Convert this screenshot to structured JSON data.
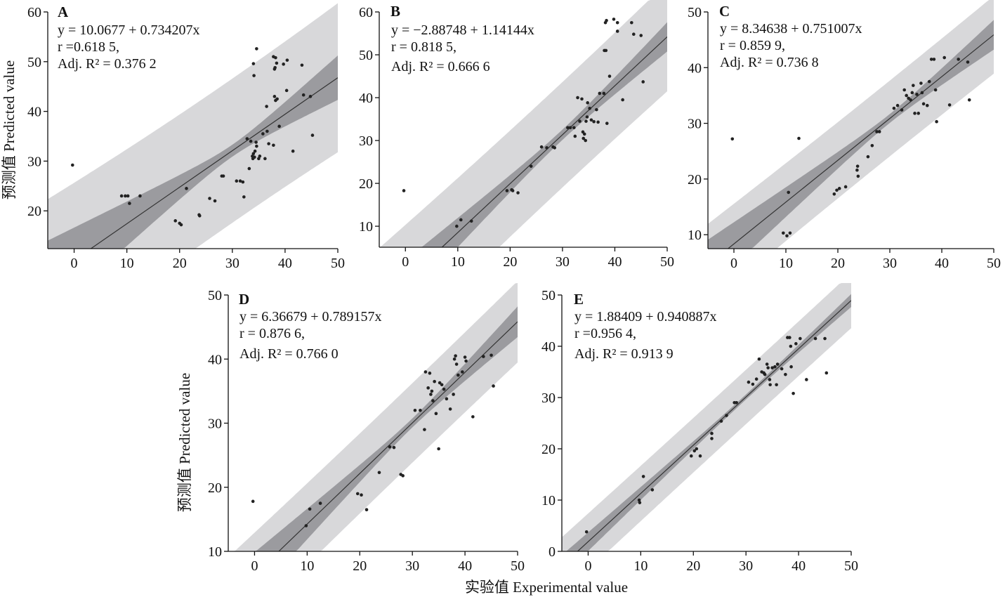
{
  "figure": {
    "ylabel_top": "预测值 Predicted value",
    "ylabel_bottom": "预测值 Predicted value",
    "xlabel": "实验值 Experimental value"
  },
  "colors": {
    "prediction_band": "#d8d8da",
    "confidence_band": "#9b9b9f",
    "fit_line": "#333333",
    "points": "#222222"
  },
  "chart_data": [
    {
      "type": "scatter",
      "panel": "A",
      "equation": "y = 10.0677 + 0.734207x",
      "r_text": "r =0.618 5,",
      "adj_r2_text": "Adj. R² = 0.376 2",
      "intercept": 10.0677,
      "slope": 0.734207,
      "xlim": [
        -5,
        50
      ],
      "ylim": [
        12.4,
        60
      ],
      "xticks": [
        0,
        10,
        20,
        30,
        40,
        50
      ],
      "yticks": [
        20,
        30,
        40,
        50,
        60
      ],
      "bands": {
        "center_x": 30,
        "prediction_min_halfwidth": 14.5,
        "prediction_growth": 0.19,
        "confidence_min_halfwidth": 1.2,
        "confidence_growth": 0.215
      },
      "points": [
        [
          -0.3,
          29.2
        ],
        [
          9,
          23
        ],
        [
          9.7,
          23
        ],
        [
          10.2,
          23
        ],
        [
          10.5,
          21.5
        ],
        [
          12.5,
          23
        ],
        [
          19.2,
          18
        ],
        [
          20,
          17.5
        ],
        [
          20.3,
          17.2
        ],
        [
          21.3,
          24.5
        ],
        [
          23.7,
          19.2
        ],
        [
          23.8,
          19
        ],
        [
          25.7,
          22.5
        ],
        [
          26.7,
          22
        ],
        [
          28,
          27
        ],
        [
          28.3,
          27
        ],
        [
          30.8,
          26
        ],
        [
          31.5,
          26
        ],
        [
          32,
          25.8
        ],
        [
          32.2,
          22.8
        ],
        [
          32.8,
          34.5
        ],
        [
          33.2,
          28.5
        ],
        [
          33.5,
          34
        ],
        [
          33.8,
          31
        ],
        [
          33.9,
          30.5
        ],
        [
          34,
          31.5
        ],
        [
          34.2,
          30.8
        ],
        [
          34.3,
          32
        ],
        [
          34.5,
          33.8
        ],
        [
          34.6,
          33
        ],
        [
          35,
          30.5
        ],
        [
          35.2,
          31
        ],
        [
          34,
          49.6
        ],
        [
          34.1,
          47.2
        ],
        [
          34.6,
          52.6
        ],
        [
          36.2,
          30.5
        ],
        [
          36.5,
          41
        ],
        [
          36.6,
          36
        ],
        [
          36.9,
          33.5
        ],
        [
          35.8,
          35.5
        ],
        [
          37.8,
          33.2
        ],
        [
          37.8,
          51
        ],
        [
          38.2,
          50.8
        ],
        [
          38,
          48.5
        ],
        [
          38.1,
          48.8
        ],
        [
          38.4,
          49.7
        ],
        [
          38,
          43
        ],
        [
          38.2,
          42.2
        ],
        [
          38.5,
          42.5
        ],
        [
          38.9,
          37
        ],
        [
          39.7,
          49.5
        ],
        [
          40.4,
          50.3
        ],
        [
          40.3,
          44.2
        ],
        [
          41.5,
          32
        ],
        [
          43.2,
          49.3
        ],
        [
          43.5,
          43.3
        ],
        [
          44.8,
          43
        ],
        [
          45.2,
          35.2
        ]
      ]
    },
    {
      "type": "scatter",
      "panel": "B",
      "equation": "y = −2.88748 + 1.14144x",
      "r_text": "r = 0.818 5,",
      "adj_r2_text": "Adj. R² = 0.666 6",
      "intercept": -2.88748,
      "slope": 1.14144,
      "xlim": [
        -5,
        50
      ],
      "ylim": [
        5.1,
        60
      ],
      "xticks": [
        0,
        10,
        20,
        30,
        40,
        50
      ],
      "yticks": [
        10,
        20,
        30,
        40,
        50,
        60
      ],
      "bands": {
        "center_x": 30,
        "prediction_min_halfwidth": 12.3,
        "prediction_growth": 0.16,
        "confidence_min_halfwidth": 1.2,
        "confidence_growth": 0.16
      },
      "points": [
        [
          -0.3,
          18.3
        ],
        [
          9.8,
          10
        ],
        [
          10.6,
          11.5
        ],
        [
          12.6,
          11.2
        ],
        [
          19.4,
          18.3
        ],
        [
          20.3,
          18.5
        ],
        [
          20.5,
          18.3
        ],
        [
          21.5,
          17.8
        ],
        [
          24,
          24
        ],
        [
          26,
          28.5
        ],
        [
          27,
          28.3
        ],
        [
          28.2,
          28.5
        ],
        [
          28.5,
          28.3
        ],
        [
          31,
          33
        ],
        [
          31.5,
          33
        ],
        [
          32.2,
          33
        ],
        [
          32.4,
          31
        ],
        [
          32.9,
          40
        ],
        [
          33.3,
          34.5
        ],
        [
          33.7,
          39.7
        ],
        [
          33.9,
          32
        ],
        [
          34,
          30.5
        ],
        [
          34.2,
          31.5
        ],
        [
          34.4,
          30
        ],
        [
          34.5,
          34.5
        ],
        [
          34.7,
          35.5
        ],
        [
          34.8,
          38.8
        ],
        [
          35.2,
          37.5
        ],
        [
          35.5,
          34.8
        ],
        [
          36,
          34.4
        ],
        [
          36.5,
          37.2
        ],
        [
          36.8,
          34.3
        ],
        [
          37.1,
          41
        ],
        [
          37.9,
          41
        ],
        [
          38,
          51
        ],
        [
          38.3,
          51
        ],
        [
          38.5,
          34
        ],
        [
          38.2,
          57.5
        ],
        [
          38.4,
          58
        ],
        [
          39,
          45
        ],
        [
          39.8,
          58.3
        ],
        [
          40.5,
          57.5
        ],
        [
          40.5,
          55.5
        ],
        [
          41.5,
          39.5
        ],
        [
          43.2,
          57.5
        ],
        [
          43.6,
          54.8
        ],
        [
          45,
          54.5
        ],
        [
          45.4,
          43.7
        ]
      ]
    },
    {
      "type": "scatter",
      "panel": "C",
      "equation": "y = 8.34638 + 0.751007x",
      "r_text": "r = 0.859 9,",
      "adj_r2_text": "Adj. R² = 0.736 8",
      "intercept": 8.34638,
      "slope": 0.751007,
      "xlim": [
        -5,
        50
      ],
      "ylim": [
        7.5,
        50
      ],
      "xticks": [
        0,
        10,
        20,
        30,
        40,
        50
      ],
      "yticks": [
        10,
        20,
        30,
        40,
        50
      ],
      "bands": {
        "center_x": 30,
        "prediction_min_halfwidth": 6.8,
        "prediction_growth": 0.08,
        "confidence_min_halfwidth": 0.8,
        "confidence_growth": 0.127
      },
      "points": [
        [
          -0.3,
          27.2
        ],
        [
          9.5,
          10.3
        ],
        [
          10.2,
          9.8
        ],
        [
          10.8,
          10.3
        ],
        [
          10.5,
          17.6
        ],
        [
          12.5,
          27.3
        ],
        [
          19.3,
          17.3
        ],
        [
          19.8,
          18
        ],
        [
          20.3,
          18.3
        ],
        [
          21.5,
          18.6
        ],
        [
          23.7,
          21.6
        ],
        [
          23.8,
          22.3
        ],
        [
          23.9,
          20.5
        ],
        [
          25.8,
          24
        ],
        [
          26.6,
          26
        ],
        [
          27.5,
          28.5
        ],
        [
          28,
          28.5
        ],
        [
          30.8,
          32.7
        ],
        [
          31.5,
          33.2
        ],
        [
          32.3,
          32.4
        ],
        [
          32.8,
          36
        ],
        [
          33.2,
          35
        ],
        [
          33.6,
          34.5
        ],
        [
          34,
          34.2
        ],
        [
          34.3,
          35.5
        ],
        [
          34.5,
          36.8
        ],
        [
          34.8,
          31.8
        ],
        [
          35.2,
          35.2
        ],
        [
          35.5,
          31.8
        ],
        [
          36,
          37.2
        ],
        [
          36.2,
          35.5
        ],
        [
          36.5,
          33.5
        ],
        [
          37.2,
          33.2
        ],
        [
          37.6,
          37.5
        ],
        [
          38,
          41.5
        ],
        [
          38.5,
          41.5
        ],
        [
          38.8,
          36
        ],
        [
          39,
          30.3
        ],
        [
          40.5,
          41.8
        ],
        [
          41.5,
          33.3
        ],
        [
          43.2,
          41.5
        ],
        [
          45,
          41
        ],
        [
          45.3,
          34.2
        ]
      ]
    },
    {
      "type": "scatter",
      "panel": "D",
      "equation": "y = 6.36679 + 0.789157x",
      "r_text": "r = 0.876 6,",
      "adj_r2_text": "Adj. R² = 0.766 0",
      "intercept": 6.36679,
      "slope": 0.789157,
      "xlim": [
        -5,
        50
      ],
      "ylim": [
        10,
        50
      ],
      "xticks": [
        0,
        10,
        20,
        30,
        40,
        50
      ],
      "yticks": [
        10,
        20,
        30,
        40,
        50
      ],
      "bands": {
        "center_x": 30,
        "prediction_min_halfwidth": 6.2,
        "prediction_growth": 0.07,
        "confidence_min_halfwidth": 0.7,
        "confidence_growth": 0.114
      },
      "points": [
        [
          -0.3,
          17.8
        ],
        [
          9.8,
          14
        ],
        [
          10.5,
          16.6
        ],
        [
          12.5,
          17.5
        ],
        [
          19.6,
          19
        ],
        [
          20.3,
          18.8
        ],
        [
          21.3,
          16.5
        ],
        [
          23.7,
          22.3
        ],
        [
          25.7,
          26.3
        ],
        [
          26.5,
          26.2
        ],
        [
          27.8,
          22
        ],
        [
          28.2,
          21.8
        ],
        [
          30.5,
          32
        ],
        [
          31.5,
          32
        ],
        [
          32.3,
          29
        ],
        [
          32.5,
          38
        ],
        [
          33,
          35.5
        ],
        [
          33.3,
          37.8
        ],
        [
          33.5,
          34.5
        ],
        [
          33.7,
          35
        ],
        [
          33.9,
          33.5
        ],
        [
          34.2,
          36.5
        ],
        [
          34.5,
          31.5
        ],
        [
          35,
          26
        ],
        [
          35.2,
          36.3
        ],
        [
          35.6,
          36
        ],
        [
          36,
          35.3
        ],
        [
          36.5,
          33.8
        ],
        [
          37.2,
          32.2
        ],
        [
          37.8,
          34.5
        ],
        [
          38,
          40
        ],
        [
          38.2,
          40.5
        ],
        [
          38.4,
          39.2
        ],
        [
          38.7,
          37.5
        ],
        [
          39.5,
          38
        ],
        [
          40,
          40.3
        ],
        [
          40.2,
          39.7
        ],
        [
          41.5,
          31
        ],
        [
          43.5,
          40.4
        ],
        [
          45,
          40.6
        ],
        [
          45.4,
          35.8
        ]
      ]
    },
    {
      "type": "scatter",
      "panel": "E",
      "equation": "y = 1.88409 + 0.940887x",
      "r_text": "r  =0.956 4,",
      "adj_r2_text": "Adj. R² = 0.913 9",
      "intercept": 1.88409,
      "slope": 0.940887,
      "xlim": [
        -5,
        50
      ],
      "ylim": [
        0,
        50
      ],
      "xticks": [
        0,
        10,
        20,
        30,
        40,
        50
      ],
      "yticks": [
        0,
        10,
        20,
        30,
        40,
        50
      ],
      "bands": {
        "center_x": 30,
        "prediction_min_halfwidth": 5.3,
        "prediction_growth": 0.05,
        "confidence_min_halfwidth": 0.5,
        "confidence_growth": 0.058
      },
      "points": [
        [
          -0.3,
          3.8
        ],
        [
          9.7,
          10
        ],
        [
          9.8,
          9.5
        ],
        [
          10.5,
          14.6
        ],
        [
          12.2,
          12
        ],
        [
          19.6,
          18.6
        ],
        [
          20.2,
          19.6
        ],
        [
          20.6,
          20
        ],
        [
          21.3,
          18.6
        ],
        [
          23.5,
          22
        ],
        [
          23.5,
          23
        ],
        [
          25.3,
          25.4
        ],
        [
          26.3,
          26.5
        ],
        [
          27.8,
          29
        ],
        [
          28.2,
          29
        ],
        [
          30.5,
          33
        ],
        [
          31.3,
          32.6
        ],
        [
          32,
          33.6
        ],
        [
          32.5,
          37.5
        ],
        [
          33,
          35
        ],
        [
          33.4,
          34.8
        ],
        [
          33.6,
          34.5
        ],
        [
          34,
          36.5
        ],
        [
          34.2,
          35.8
        ],
        [
          34.5,
          33.5
        ],
        [
          34.6,
          32.5
        ],
        [
          35,
          35.8
        ],
        [
          35.5,
          36
        ],
        [
          35.8,
          32.5
        ],
        [
          36,
          36.5
        ],
        [
          36.8,
          35.6
        ],
        [
          37.5,
          34.5
        ],
        [
          37.9,
          41.7
        ],
        [
          38.3,
          41.7
        ],
        [
          38.5,
          40
        ],
        [
          38.6,
          36
        ],
        [
          39,
          30.8
        ],
        [
          39.5,
          40.5
        ],
        [
          40.3,
          41.5
        ],
        [
          41.5,
          33.5
        ],
        [
          43.2,
          41.5
        ],
        [
          45,
          41.5
        ],
        [
          45.3,
          34.8
        ]
      ]
    }
  ]
}
